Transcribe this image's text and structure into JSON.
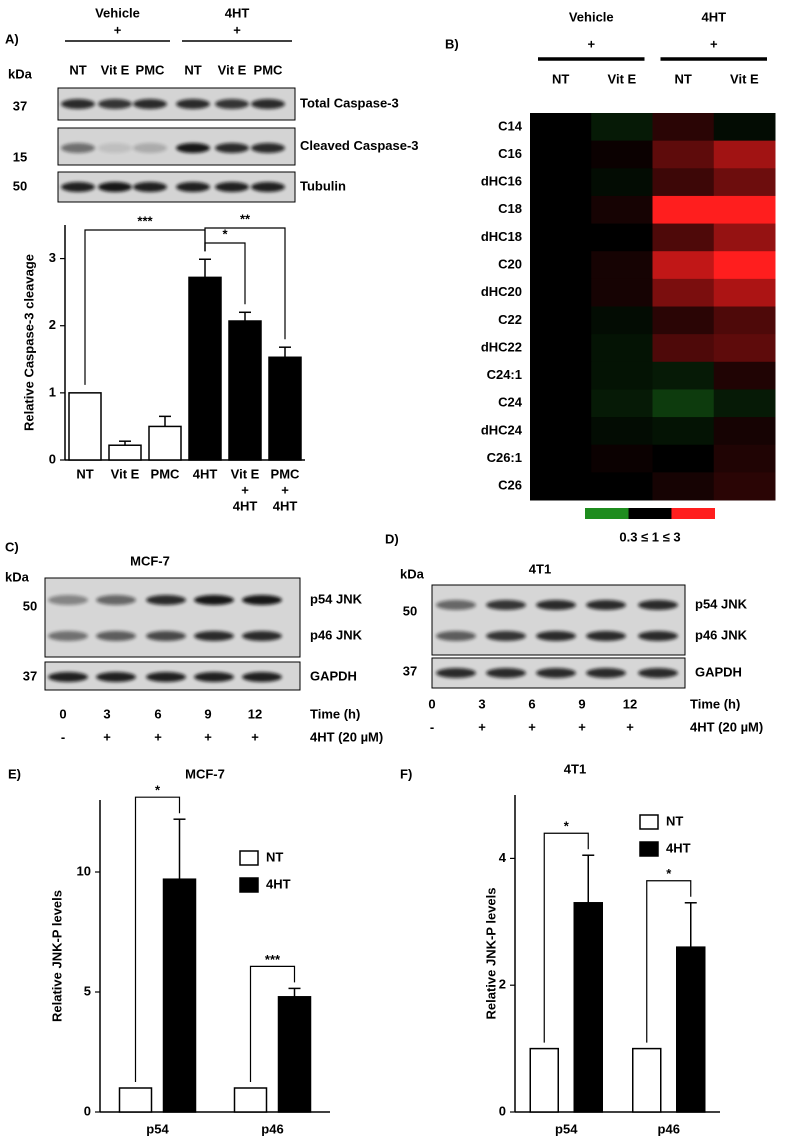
{
  "blots": {
    "A": {
      "kda": "kDa",
      "groups": [
        {
          "name": "Vehicle",
          "symbol": "+",
          "lanes": [
            "NT",
            "Vit E",
            "PMC"
          ]
        },
        {
          "name": "4HT",
          "symbol": "+",
          "lanes": [
            "NT",
            "Vit E",
            "PMC"
          ]
        }
      ],
      "rows": [
        {
          "marker": "37",
          "name": "Total Caspase-3"
        },
        {
          "marker": "15",
          "name": "Cleaved Caspase-3"
        },
        {
          "marker": "50",
          "name": "Tubulin"
        }
      ]
    },
    "C": {
      "label": "C)",
      "kda": "kDa",
      "title": "MCF-7",
      "boxes": [
        {
          "marker": "50",
          "bands": [
            "p54 JNK",
            "p46 JNK"
          ]
        },
        {
          "marker": "37",
          "bands": [
            "GAPDH"
          ]
        }
      ],
      "time": {
        "label": "Time (h)",
        "values": [
          "0",
          "3",
          "6",
          "9",
          "12"
        ]
      },
      "treatment": {
        "label": "4HT (20 µM)",
        "values": [
          "-",
          "+",
          "+",
          "+",
          "+"
        ]
      }
    },
    "D": {
      "label": "D)",
      "kda": "kDa",
      "title": "4T1",
      "boxes": [
        {
          "marker": "50",
          "bands": [
            "p54 JNK",
            "p46 JNK"
          ]
        },
        {
          "marker": "37",
          "bands": [
            "GAPDH"
          ]
        }
      ],
      "time": {
        "label": "Time (h)",
        "values": [
          "0",
          "3",
          "6",
          "9",
          "12"
        ]
      },
      "treatment": {
        "label": "4HT (20 µM)",
        "values": [
          "-",
          "+",
          "+",
          "+",
          "+"
        ]
      }
    }
  },
  "chart_data": [
    {
      "type": "bar",
      "panel": "A)",
      "ylabel": "Relative Caspase-3 cleavage",
      "categories": [
        [
          "NT"
        ],
        [
          "Vit E"
        ],
        [
          "PMC"
        ],
        [
          "4HT"
        ],
        [
          "Vit E",
          "+",
          "4HT"
        ],
        [
          "PMC",
          "+",
          "4HT"
        ]
      ],
      "values": [
        1,
        0.22,
        0.5,
        2.72,
        2.07,
        1.53
      ],
      "errors": [
        0,
        0.06,
        0.15,
        0.27,
        0.13,
        0.15
      ],
      "colors": [
        "#ffffff",
        "#ffffff",
        "#ffffff",
        "#000000",
        "#000000",
        "#000000"
      ],
      "ylim": [
        0,
        3.5
      ],
      "yticks": [
        0,
        1,
        2,
        3
      ],
      "annotations": [
        "***",
        "*",
        "**"
      ]
    },
    {
      "type": "heatmap",
      "panel": "B)",
      "groups": [
        {
          "name": "Vehicle",
          "symbol": "+"
        },
        {
          "name": "4HT",
          "symbol": "+"
        }
      ],
      "x": [
        "NT",
        "Vit E",
        "NT",
        "Vit E"
      ],
      "y": [
        "C14",
        "C16",
        "dHC16",
        "C18",
        "dHC18",
        "C20",
        "dHC20",
        "C22",
        "dHC22",
        "C24:1",
        "C24",
        "dHC24",
        "C26:1",
        "C26"
      ],
      "z": [
        [
          1,
          0.8,
          1.2,
          0.9
        ],
        [
          1,
          1.05,
          1.5,
          2.0
        ],
        [
          1,
          0.9,
          1.3,
          1.6
        ],
        [
          1,
          1.1,
          3,
          3
        ],
        [
          1,
          1.0,
          1.4,
          1.9
        ],
        [
          1,
          1.1,
          2.3,
          3
        ],
        [
          1,
          1.1,
          1.7,
          2.1
        ],
        [
          1,
          0.9,
          1.2,
          1.4
        ],
        [
          1,
          0.85,
          1.4,
          1.5
        ],
        [
          1,
          0.85,
          0.8,
          1.15
        ],
        [
          1,
          0.8,
          0.6,
          0.8
        ],
        [
          1,
          0.9,
          0.85,
          1.1
        ],
        [
          1,
          1.05,
          1.0,
          1.15
        ],
        [
          1,
          1.0,
          1.1,
          1.2
        ]
      ],
      "zlim": [
        0.3,
        3
      ],
      "zmid": 1,
      "log_scale": true,
      "colors": [
        "#1e8c1e",
        "#000000",
        "#ff1e1e"
      ],
      "colorbar_label": "0.3 ≤ 1 ≤ 3"
    },
    {
      "type": "bar",
      "panel": "E)",
      "title": "MCF-7",
      "ylabel": "Relative JNK-P levels",
      "categories": [
        "p54",
        "p46"
      ],
      "series": [
        {
          "name": "NT",
          "color": "#ffffff",
          "values": [
            1,
            1
          ],
          "errors": [
            0,
            0
          ]
        },
        {
          "name": "4HT",
          "color": "#000000",
          "values": [
            9.7,
            4.8
          ],
          "errors": [
            2.5,
            0.35
          ]
        }
      ],
      "ylim": [
        0,
        13
      ],
      "yticks": [
        0,
        5,
        10
      ],
      "annotations": [
        "*",
        "***"
      ],
      "legend": "right"
    },
    {
      "type": "bar",
      "panel": "F)",
      "title": "4T1",
      "ylabel": "Relative JNK-P levels",
      "categories": [
        "p54",
        "p46"
      ],
      "series": [
        {
          "name": "NT",
          "color": "#ffffff",
          "values": [
            1,
            1
          ],
          "errors": [
            0,
            0
          ]
        },
        {
          "name": "4HT",
          "color": "#000000",
          "values": [
            3.3,
            2.6
          ],
          "errors": [
            0.75,
            0.7
          ]
        }
      ],
      "ylim": [
        0,
        5
      ],
      "yticks": [
        0,
        2,
        4
      ],
      "annotations": [
        "*",
        "*"
      ],
      "legend": "upper right"
    }
  ]
}
